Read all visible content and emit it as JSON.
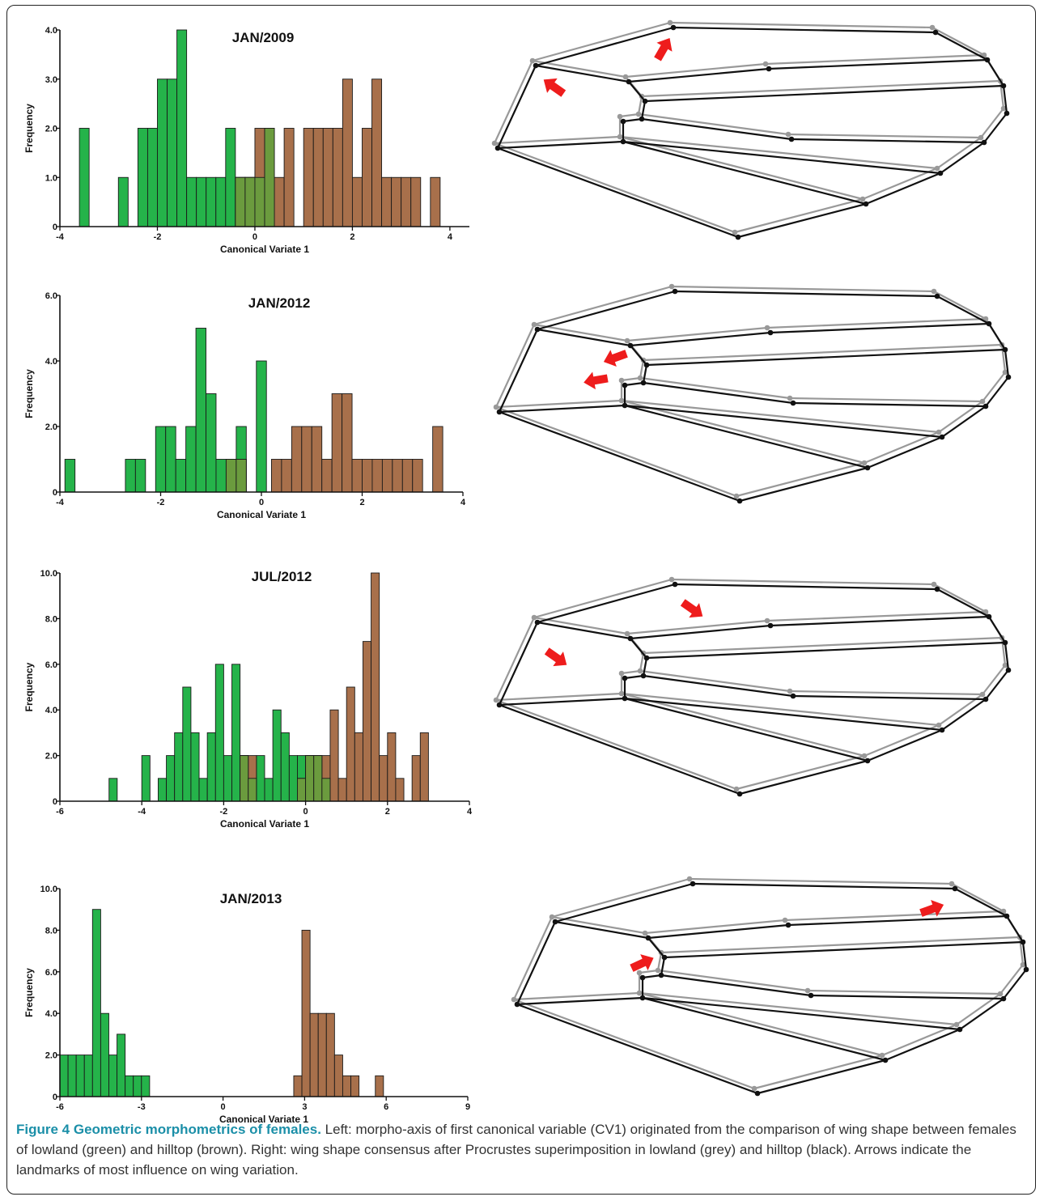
{
  "colors": {
    "lowland": "#25b34a",
    "hilltop": "#a8704b",
    "overlap": "#6b9b3e",
    "outline_lowland": "#999999",
    "outline_hilltop": "#111111",
    "arrow": "#ee1c1c"
  },
  "caption": {
    "title": "Figure 4 Geometric morphometrics of females.",
    "text": " Left: morpho-axis of first canonical variable (CV1) originated from the comparison of wing shape between females of lowland (green) and hilltop (brown). Right: wing shape consensus after Procrustes superimposition in lowland (grey) and hilltop (black). Arrows indicate the landmarks of most influence on wing variation."
  },
  "chart_data": [
    {
      "type": "bar",
      "title": "JAN/2009",
      "xlabel": "Canonical Variate 1",
      "ylabel": "Frequency",
      "xlim": [
        -4,
        4.4
      ],
      "ylim": [
        0,
        4.0
      ],
      "xticks": [
        "-4",
        "-2",
        "0",
        "2",
        "4"
      ],
      "yticks": [
        "0",
        "1.0",
        "2.0",
        "3.0",
        "4.0"
      ],
      "series": [
        {
          "name": "lowland",
          "bins": [
            [
              -3.6,
              -3.4,
              2
            ],
            [
              -2.8,
              -2.6,
              1
            ],
            [
              -2.4,
              -2.2,
              2
            ],
            [
              -2.2,
              -2.0,
              2
            ],
            [
              -2.0,
              -1.8,
              3
            ],
            [
              -1.8,
              -1.6,
              3
            ],
            [
              -1.6,
              -1.4,
              4
            ],
            [
              -1.4,
              -1.2,
              1
            ],
            [
              -1.2,
              -1.0,
              1
            ],
            [
              -1.0,
              -0.8,
              1
            ],
            [
              -0.8,
              -0.6,
              1
            ],
            [
              -0.6,
              -0.4,
              2
            ],
            [
              -0.4,
              -0.2,
              1
            ],
            [
              -0.2,
              0.0,
              1
            ],
            [
              0.0,
              0.2,
              1
            ],
            [
              0.2,
              0.4,
              2
            ]
          ]
        },
        {
          "name": "hilltop",
          "bins": [
            [
              -0.4,
              -0.2,
              1
            ],
            [
              -0.2,
              0.0,
              1
            ],
            [
              0.0,
              0.2,
              2
            ],
            [
              0.2,
              0.4,
              2
            ],
            [
              0.4,
              0.6,
              1
            ],
            [
              0.6,
              0.8,
              2
            ],
            [
              1.0,
              1.2,
              2
            ],
            [
              1.2,
              1.4,
              2
            ],
            [
              1.4,
              1.6,
              2
            ],
            [
              1.6,
              1.8,
              2
            ],
            [
              1.8,
              2.0,
              3
            ],
            [
              2.0,
              2.2,
              1
            ],
            [
              2.2,
              2.4,
              2
            ],
            [
              2.4,
              2.6,
              3
            ],
            [
              2.6,
              2.8,
              1
            ],
            [
              2.8,
              3.0,
              1
            ],
            [
              3.0,
              3.2,
              1
            ],
            [
              3.2,
              3.4,
              1
            ],
            [
              3.6,
              3.8,
              1
            ]
          ]
        }
      ]
    },
    {
      "type": "bar",
      "title": "JAN/2012",
      "xlabel": "Canonical Variate 1",
      "ylabel": "Frequency",
      "xlim": [
        -4,
        4
      ],
      "ylim": [
        0,
        6.0
      ],
      "xticks": [
        "-4",
        "-2",
        "0",
        "2",
        "4"
      ],
      "yticks": [
        "0",
        "2.0",
        "4.0",
        "6.0"
      ],
      "series": [
        {
          "name": "lowland",
          "bins": [
            [
              -3.9,
              -3.7,
              1
            ],
            [
              -2.7,
              -2.5,
              1
            ],
            [
              -2.5,
              -2.3,
              1
            ],
            [
              -2.1,
              -1.9,
              2
            ],
            [
              -1.9,
              -1.7,
              2
            ],
            [
              -1.7,
              -1.5,
              1
            ],
            [
              -1.5,
              -1.3,
              2
            ],
            [
              -1.3,
              -1.1,
              5
            ],
            [
              -1.1,
              -0.9,
              3
            ],
            [
              -0.9,
              -0.7,
              1
            ],
            [
              -0.7,
              -0.5,
              1
            ],
            [
              -0.5,
              -0.3,
              2
            ],
            [
              -0.1,
              0.1,
              4
            ]
          ]
        },
        {
          "name": "hilltop",
          "bins": [
            [
              -0.7,
              -0.5,
              1
            ],
            [
              -0.5,
              -0.3,
              1
            ],
            [
              0.2,
              0.4,
              1
            ],
            [
              0.4,
              0.6,
              1
            ],
            [
              0.6,
              0.8,
              2
            ],
            [
              0.8,
              1.0,
              2
            ],
            [
              1.0,
              1.2,
              2
            ],
            [
              1.2,
              1.4,
              1
            ],
            [
              1.4,
              1.6,
              3
            ],
            [
              1.6,
              1.8,
              3
            ],
            [
              1.8,
              2.0,
              1
            ],
            [
              2.0,
              2.2,
              1
            ],
            [
              2.2,
              2.4,
              1
            ],
            [
              2.4,
              2.6,
              1
            ],
            [
              2.6,
              2.8,
              1
            ],
            [
              2.8,
              3.0,
              1
            ],
            [
              3.0,
              3.2,
              1
            ],
            [
              3.4,
              3.6,
              2
            ]
          ]
        }
      ]
    },
    {
      "type": "bar",
      "title": "JUL/2012",
      "xlabel": "Canonical Variate 1",
      "ylabel": "Frequency",
      "xlim": [
        -6,
        4
      ],
      "ylim": [
        0,
        10.0
      ],
      "xticks": [
        "-6",
        "-4",
        "-2",
        "0",
        "2",
        "4"
      ],
      "yticks": [
        "0",
        "2.0",
        "4.0",
        "6.0",
        "8.0",
        "10.0"
      ],
      "series": [
        {
          "name": "lowland",
          "bins": [
            [
              -4.8,
              -4.6,
              1
            ],
            [
              -4.0,
              -3.8,
              2
            ],
            [
              -3.6,
              -3.4,
              1
            ],
            [
              -3.4,
              -3.2,
              2
            ],
            [
              -3.2,
              -3.0,
              3
            ],
            [
              -3.0,
              -2.8,
              5
            ],
            [
              -2.8,
              -2.6,
              3
            ],
            [
              -2.6,
              -2.4,
              1
            ],
            [
              -2.4,
              -2.2,
              3
            ],
            [
              -2.2,
              -2.0,
              6
            ],
            [
              -2.0,
              -1.8,
              2
            ],
            [
              -1.8,
              -1.6,
              6
            ],
            [
              -1.6,
              -1.4,
              2
            ],
            [
              -1.4,
              -1.2,
              1
            ],
            [
              -1.2,
              -1.0,
              2
            ],
            [
              -1.0,
              -0.8,
              1
            ],
            [
              -0.8,
              -0.6,
              4
            ],
            [
              -0.6,
              -0.4,
              3
            ],
            [
              -0.4,
              -0.2,
              2
            ],
            [
              -0.2,
              0.0,
              2
            ],
            [
              0.0,
              0.2,
              2
            ],
            [
              0.2,
              0.4,
              2
            ],
            [
              0.4,
              0.6,
              1
            ]
          ]
        },
        {
          "name": "hilltop",
          "bins": [
            [
              -1.6,
              -1.4,
              2
            ],
            [
              -1.4,
              -1.2,
              2
            ],
            [
              -0.2,
              0.0,
              1
            ],
            [
              0.0,
              0.2,
              2
            ],
            [
              0.2,
              0.4,
              2
            ],
            [
              0.4,
              0.6,
              2
            ],
            [
              0.6,
              0.8,
              4
            ],
            [
              0.8,
              1.0,
              1
            ],
            [
              1.0,
              1.2,
              5
            ],
            [
              1.2,
              1.4,
              3
            ],
            [
              1.4,
              1.6,
              7
            ],
            [
              1.6,
              1.8,
              10
            ],
            [
              1.8,
              2.0,
              2
            ],
            [
              2.0,
              2.2,
              3
            ],
            [
              2.2,
              2.4,
              1
            ],
            [
              2.6,
              2.8,
              2
            ],
            [
              2.8,
              3.0,
              3
            ]
          ]
        }
      ]
    },
    {
      "type": "bar",
      "title": "JAN/2013",
      "xlabel": "Canonical Variate 1",
      "ylabel": "Frequency",
      "xlim": [
        -6,
        9
      ],
      "ylim": [
        0,
        10.0
      ],
      "xticks": [
        "-6",
        "-3",
        "0",
        "3",
        "6",
        "9"
      ],
      "yticks": [
        "0",
        "2.0",
        "4.0",
        "6.0",
        "8.0",
        "10.0"
      ],
      "series": [
        {
          "name": "lowland",
          "bins": [
            [
              -6.0,
              -5.7,
              2
            ],
            [
              -5.7,
              -5.4,
              2
            ],
            [
              -5.4,
              -5.1,
              2
            ],
            [
              -5.1,
              -4.8,
              2
            ],
            [
              -4.8,
              -4.5,
              9
            ],
            [
              -4.5,
              -4.2,
              4
            ],
            [
              -4.2,
              -3.9,
              2
            ],
            [
              -3.9,
              -3.6,
              3
            ],
            [
              -3.6,
              -3.3,
              1
            ],
            [
              -3.3,
              -3.0,
              1
            ],
            [
              -3.0,
              -2.7,
              1
            ]
          ]
        },
        {
          "name": "hilltop",
          "bins": [
            [
              2.6,
              2.9,
              1
            ],
            [
              2.9,
              3.2,
              8
            ],
            [
              3.2,
              3.5,
              4
            ],
            [
              3.5,
              3.8,
              4
            ],
            [
              3.8,
              4.1,
              4
            ],
            [
              4.1,
              4.4,
              2
            ],
            [
              4.4,
              4.7,
              1
            ],
            [
              4.7,
              5.0,
              1
            ],
            [
              5.6,
              5.9,
              1
            ]
          ]
        }
      ]
    }
  ]
}
